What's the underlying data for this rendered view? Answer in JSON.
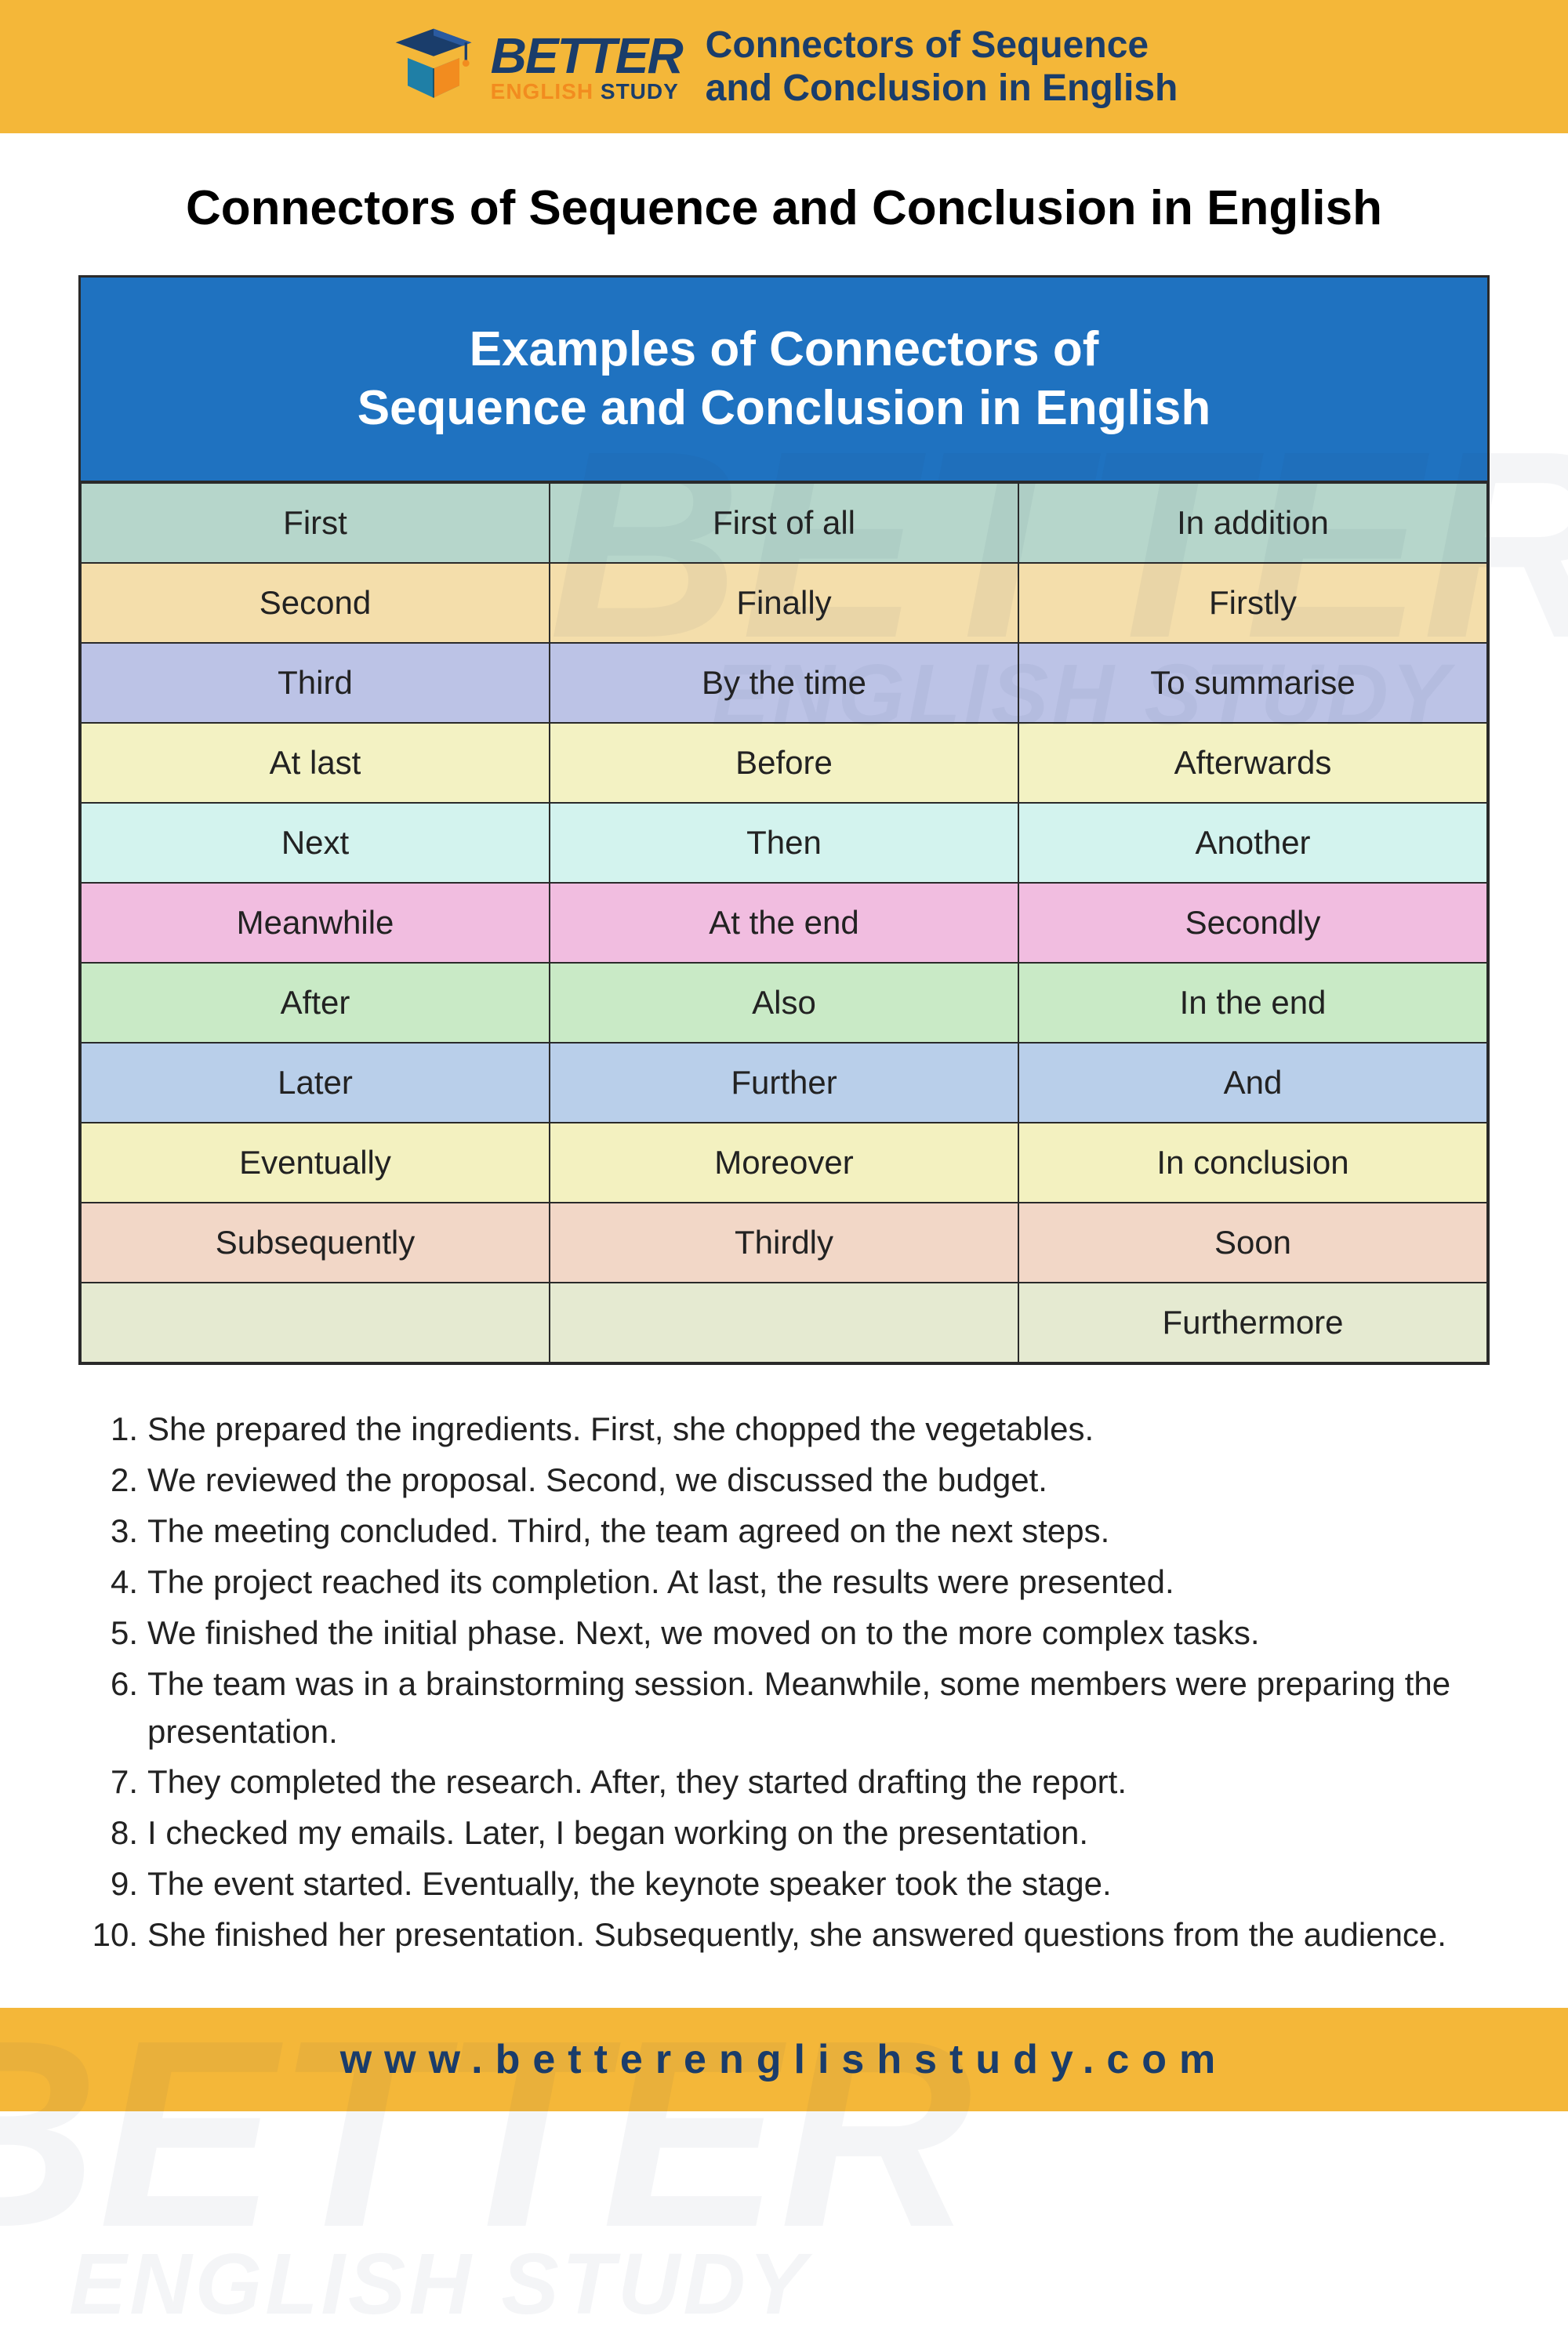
{
  "brand": {
    "logo_better": "BETTER",
    "logo_english": "ENGLISH ",
    "logo_study": "STUDY",
    "tagline_line1": "Connectors of Sequence",
    "tagline_line2": "and Conclusion in English",
    "banner_bg": "#f4b739",
    "brand_blue": "#1a3d6b",
    "brand_orange": "#f28c1f"
  },
  "main_title": "Connectors of Sequence and Conclusion in English",
  "table": {
    "header_line1": "Examples of Connectors of",
    "header_line2": "Sequence and Conclusion in English",
    "header_bg": "#1f72c0",
    "header_color": "#ffffff",
    "border_color": "#2a2a2a",
    "cell_fontsize": 42,
    "rows": [
      {
        "bg": "#b6d6cb",
        "cells": [
          "First",
          "First of all",
          "In addition"
        ]
      },
      {
        "bg": "#f4deab",
        "cells": [
          "Second",
          "Finally",
          "Firstly"
        ]
      },
      {
        "bg": "#bcc3e6",
        "cells": [
          "Third",
          "By the time",
          "To summarise"
        ]
      },
      {
        "bg": "#f3f2c3",
        "cells": [
          "At last",
          "Before",
          "Afterwards"
        ]
      },
      {
        "bg": "#d3f3ee",
        "cells": [
          "Next",
          "Then",
          "Another"
        ]
      },
      {
        "bg": "#f1bde0",
        "cells": [
          "Meanwhile",
          "At the end",
          "Secondly"
        ]
      },
      {
        "bg": "#c9eac6",
        "cells": [
          "After",
          "Also",
          "In the end"
        ]
      },
      {
        "bg": "#b9cfea",
        "cells": [
          "Later",
          "Further",
          "And"
        ]
      },
      {
        "bg": "#f3f1c0",
        "cells": [
          "Eventually",
          "Moreover",
          "In conclusion"
        ]
      },
      {
        "bg": "#f2d7c7",
        "cells": [
          "Subsequently",
          "Thirdly",
          "Soon"
        ]
      },
      {
        "bg": "#e5ead1",
        "cells": [
          "",
          "",
          "Furthermore"
        ]
      }
    ]
  },
  "sentences": [
    "She prepared the ingredients. First, she chopped the vegetables.",
    "We reviewed the proposal. Second, we discussed the budget.",
    "The meeting concluded. Third, the team agreed on the next steps.",
    "The project reached its completion. At last, the results were presented.",
    "We finished the initial phase. Next, we moved on to the more complex tasks.",
    "The team was in a brainstorming session. Meanwhile, some members were preparing the presentation.",
    "They completed the research. After, they started drafting the report.",
    "I checked my emails. Later, I began working on the presentation.",
    "The event started. Eventually, the keynote speaker took the stage.",
    "She finished her presentation. Subsequently, she answered questions from the audience."
  ],
  "footer_url": "www.betterenglishstudy.com",
  "watermark": {
    "main": "BETTER",
    "sub": "ENGLISH STUDY"
  }
}
